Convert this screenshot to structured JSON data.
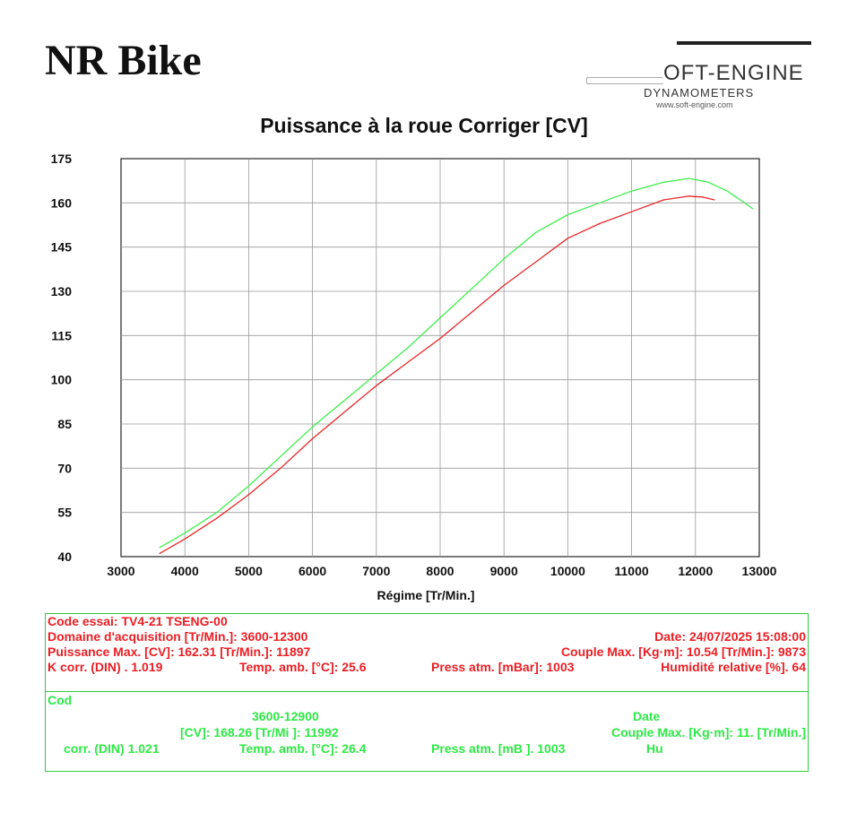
{
  "header": {
    "title": "NR Bike"
  },
  "logo": {
    "name": "OFT-ENGINE",
    "subtitle": "DYNAMOMETERS",
    "url": "www.soft-engine.com"
  },
  "chart_data": {
    "type": "line",
    "title": "Puissance à la roue Corriger [CV]",
    "xlabel": "Régime [Tr/Min.]",
    "ylabel": "",
    "xlim": [
      3000,
      13000
    ],
    "ylim": [
      40,
      175
    ],
    "xticks": [
      "3000",
      "4000",
      "5000",
      "6000",
      "7000",
      "8000",
      "9000",
      "10000",
      "11000",
      "12000",
      "13000"
    ],
    "yticks": [
      "175",
      "160",
      "145",
      "130",
      "115",
      "100",
      "85",
      "70",
      "55",
      "40"
    ],
    "grid": true,
    "series": [
      {
        "color": "#e8262a",
        "points": [
          [
            3600,
            41
          ],
          [
            4000,
            46
          ],
          [
            4500,
            53
          ],
          [
            5000,
            61
          ],
          [
            5500,
            70
          ],
          [
            6000,
            80
          ],
          [
            6500,
            89
          ],
          [
            7000,
            98
          ],
          [
            7500,
            106
          ],
          [
            8000,
            114
          ],
          [
            8500,
            123
          ],
          [
            9000,
            132
          ],
          [
            9500,
            140
          ],
          [
            10000,
            148
          ],
          [
            10500,
            153
          ],
          [
            11000,
            157
          ],
          [
            11500,
            161
          ],
          [
            11897,
            162.3
          ],
          [
            12100,
            162
          ],
          [
            12300,
            161
          ]
        ]
      },
      {
        "color": "#3cf04a",
        "points": [
          [
            3600,
            43
          ],
          [
            4000,
            48
          ],
          [
            4500,
            55
          ],
          [
            5000,
            64
          ],
          [
            5500,
            74
          ],
          [
            6000,
            84
          ],
          [
            6500,
            93
          ],
          [
            7000,
            102
          ],
          [
            7500,
            111
          ],
          [
            8000,
            121
          ],
          [
            8500,
            131
          ],
          [
            9000,
            141
          ],
          [
            9500,
            150
          ],
          [
            10000,
            156
          ],
          [
            10500,
            160
          ],
          [
            11000,
            164
          ],
          [
            11500,
            167
          ],
          [
            11900,
            168.3
          ],
          [
            12200,
            167
          ],
          [
            12500,
            164
          ],
          [
            12900,
            158
          ]
        ]
      }
    ]
  },
  "info": {
    "run1": {
      "code": "Code essai: TV4-21 TSENG-00",
      "domain": "Domaine d'acquisition [Tr/Min.]: 3600-12300",
      "date": "Date: 24/07/2025   15:08:00",
      "power": "Puissance Max. [CV]: 162.31   [Tr/Min.]: 11897",
      "couple": "Couple Max. [Kg·m]: 10.54   [Tr/Min.]: 9873",
      "kcorr": "K corr. (DIN) . 1.019",
      "temp": "Temp. amb. [°C]: 25.6",
      "press": "Press atm. [mBar]: 1003",
      "hum": "Humidité relative [%]. 64"
    },
    "run2": {
      "code": "Cod",
      "domain": "3600-12900",
      "date": "Date",
      "power": "[CV]: 168.26   [Tr/Mi ]: 11992",
      "couple": "Couple Max. [Kg·m]: 11.   [Tr/Min.]",
      "kcorr": "corr. (DIN)   1.021",
      "temp": "Temp. amb. [°C]: 26.4",
      "press": "Press atm. [mB  ]. 1003",
      "hum": "Hu"
    }
  }
}
